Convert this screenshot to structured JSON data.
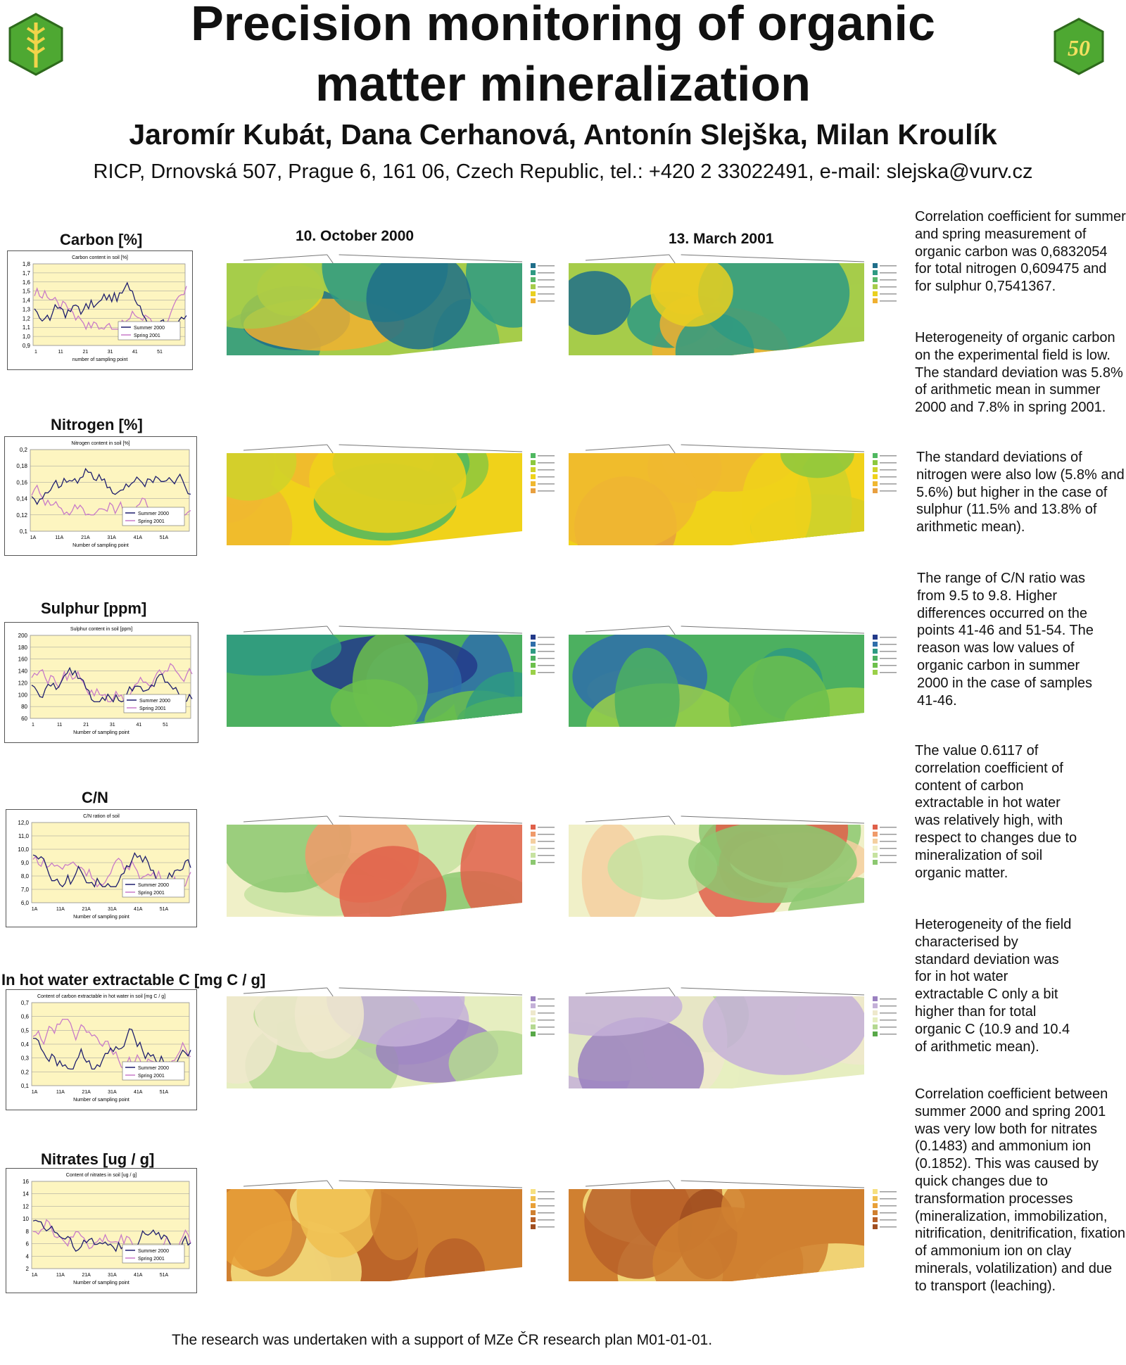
{
  "header": {
    "title_line1": "Precision monitoring of organic",
    "title_line2": "matter mineralization",
    "authors": "Jaromír Kubát, Dana Cerhanová, Antonín Slejška, Milan Kroulík",
    "affiliation": "RICP, Drnovská 507, Prague 6, 161 06, Czech Republic, tel.: +420 2 33022491, e-mail: slejska@vurv.cz",
    "logo_right_text": "50"
  },
  "dates": {
    "autumn": "10. October 2000",
    "spring": "13. March 2001"
  },
  "colors": {
    "plot_bg": "#fdf5c0",
    "summer_line": "#1e1e6e",
    "spring_line": "#c87bc8",
    "logo_green": "#4ea832"
  },
  "sections": [
    {
      "title": "Carbon [%]",
      "chart_title": "Carbon content in soil [%]",
      "y_ticks": [
        "1,8",
        "1,7",
        "1,6",
        "1,5",
        "1,4",
        "1,3",
        "1,2",
        "1,1",
        "1,0",
        "0,9"
      ],
      "x_ticks": [
        "1",
        "11",
        "21",
        "31",
        "41",
        "51"
      ],
      "x_label": "number of sampling point",
      "palette": [
        "#1f6e8a",
        "#2e9a82",
        "#5ab86a",
        "#a6cc4a",
        "#e9d020",
        "#f0b030"
      ]
    },
    {
      "title": "Nitrogen [%]",
      "chart_title": "Nitrogen content in soil [%]",
      "y_ticks": [
        "0,2",
        "0,18",
        "0,16",
        "0,14",
        "0,12",
        "0,1"
      ],
      "x_ticks": [
        "1A",
        "11A",
        "21A",
        "31A",
        "41A",
        "51A"
      ],
      "x_label": "Number of sampling point",
      "palette": [
        "#4fb860",
        "#8cc83e",
        "#cfd22a",
        "#f0d21a",
        "#f0b830",
        "#e8a040"
      ]
    },
    {
      "title": "Sulphur  [ppm]",
      "chart_title": "Sulphur content in soil [ppm]",
      "y_ticks": [
        "200",
        "180",
        "160",
        "140",
        "120",
        "100",
        "80",
        "60"
      ],
      "x_ticks": [
        "1",
        "11",
        "21",
        "31",
        "41",
        "51"
      ],
      "x_label": "Number of sampling point",
      "palette": [
        "#233a8a",
        "#2f6eaa",
        "#2e9a82",
        "#4cb060",
        "#6cc04c",
        "#9ad048"
      ]
    },
    {
      "title": "C/N",
      "chart_title": "C/N ration of soil",
      "y_ticks": [
        "12,0",
        "11,0",
        "10,0",
        "9,0",
        "8,0",
        "7,0",
        "6,0"
      ],
      "x_ticks": [
        "1A",
        "11A",
        "21A",
        "31A",
        "41A",
        "51A"
      ],
      "x_label": "Number of sampling point",
      "palette": [
        "#e0604a",
        "#f09a6a",
        "#f4cfa0",
        "#f0f0c8",
        "#c6e2a0",
        "#8cc870"
      ]
    },
    {
      "title": "In hot water extractable C [mg C / g]",
      "chart_title": "Content of carbon extractable in hot water in soil [mg C / g]",
      "y_ticks": [
        "0,7",
        "0,6",
        "0,5",
        "0,4",
        "0,3",
        "0,2",
        "0,1"
      ],
      "x_ticks": [
        "1A",
        "11A",
        "21A",
        "31A",
        "41A",
        "51A"
      ],
      "x_label": "Number of sampling point",
      "palette": [
        "#9a80c0",
        "#c4b0d8",
        "#eee8cc",
        "#e6eec0",
        "#b4d890",
        "#58a848"
      ]
    },
    {
      "title": "Nitrates [ug / g]",
      "chart_title": "Content of nitrates in soil [ug / g]",
      "y_ticks": [
        "16",
        "14",
        "12",
        "10",
        "8",
        "6",
        "4",
        "2"
      ],
      "x_ticks": [
        "1A",
        "11A",
        "21A",
        "31A",
        "41A",
        "51A"
      ],
      "x_label": "Number of sampling point",
      "palette": [
        "#f6e080",
        "#f0c050",
        "#e8a038",
        "#d08030",
        "#b86028",
        "#a04e20"
      ]
    }
  ],
  "legend_label": {
    "summer": "Summer 2000",
    "spring": "Spring 2001"
  },
  "text_blocks": [
    "Correlation coefficient for summer and spring measurement of organic carbon was 0,6832054 for total nitrogen 0,609475 and for sulphur 0,7541367.",
    "Heterogeneity of organic carbon on the experimental field is low. The standard deviation was 5.8% of arithmetic mean in summer 2000 and 7.8% in spring 2001.",
    "The standard deviations of nitrogen were also low (5.8% and 5.6%) but higher in the case of sulphur (11.5% and 13.8% of arithmetic mean).",
    "The range of C/N ratio was from 9.5 to 9.8. Higher differences occurred on the points 41-46 and 51-54. The reason was low values of organic carbon in summer 2000 in the case of samples 41-46.",
    "The value 0.6117 of correlation coefficient of content of carbon extractable in hot water was relatively high, with respect to changes due to mineralization of soil organic matter.",
    "Heterogeneity of the field characterised by standard deviation was for in hot water extractable C only a bit higher than for total organic C (10.9 and 10.4 of arithmetic mean).",
    "Correlation coefficient between summer 2000 and spring 2001 was very low both for nitrates (0.1483) and ammonium ion (0.1852). This was caused by quick changes due to transformation processes (mineralization, immobilization, nitrification, denitrification, fixation of ammonium ion on clay minerals, volatilization) and due to transport (leaching)."
  ],
  "footer": "The research was undertaken with a support of MZe ČR research plan M01-01-01."
}
